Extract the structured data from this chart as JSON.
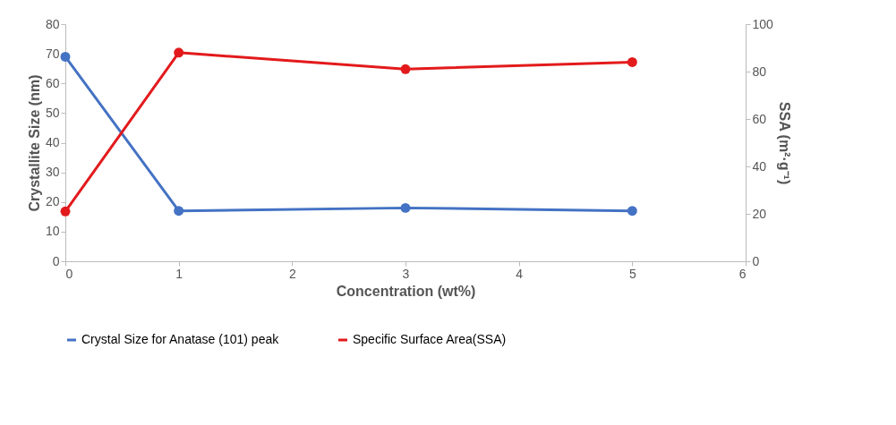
{
  "chart_data": {
    "type": "line",
    "xlabel": "Concentration (wt%)",
    "ylabel": "Crystallite Size (nm)",
    "y2label": "SSA (m²·g⁻¹)",
    "x": [
      0,
      1,
      3,
      5
    ],
    "series": [
      {
        "name": "Crystal Size for Anatase (101) peak",
        "color": "#4472c4",
        "values": [
          69,
          17,
          18,
          17
        ]
      },
      {
        "name": "Specific Surface Area(SSA)",
        "color": "#e31a1c",
        "values": [
          21,
          88,
          81,
          84
        ],
        "axis": "y2"
      }
    ],
    "xlim": [
      0,
      6
    ],
    "xticks": [
      0,
      1,
      2,
      3,
      4,
      5,
      6
    ],
    "ylim": [
      0,
      80
    ],
    "yticks": [
      0,
      10,
      20,
      30,
      40,
      50,
      60,
      70,
      80
    ],
    "y2lim": [
      0,
      100
    ],
    "y2ticks": [
      0,
      20,
      40,
      60,
      80,
      100
    ],
    "marker": "circle",
    "line_style": "solid",
    "grid": false,
    "legend": "bottom"
  }
}
